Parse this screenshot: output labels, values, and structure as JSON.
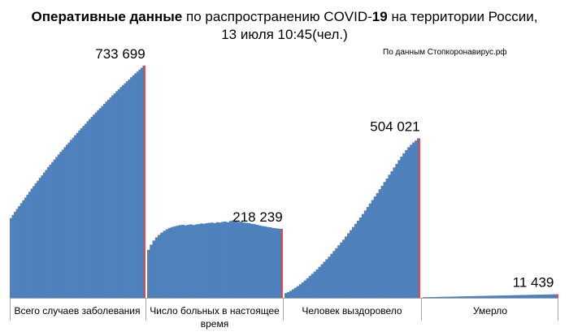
{
  "header": {
    "title_bold_1": "Оперативные данные",
    "title_text_1": " по распространению COVID-",
    "title_bold_2": "19",
    "title_text_2": " на территории России,",
    "title_line2": "13 июля 10:45(чел.)",
    "source": "По данным Стопкоронавирус.рф"
  },
  "chart_data": {
    "type": "area",
    "title": "Оперативные данные по распространению COVID-19 на территории России, 13 июля 10:45(чел.)",
    "ylim": [
      0,
      800000
    ],
    "grid": false,
    "legend": "none",
    "colors": {
      "fill": "#4f81bd",
      "marker": "#e0443e",
      "axis": "#a6a6a6"
    },
    "panels": [
      {
        "name": "Всего случаев заболевания",
        "label_lines": [
          "Всего случаев заболевания"
        ],
        "final_label": "733 699",
        "values": [
          252000,
          262000,
          272000,
          281000,
          290000,
          299000,
          308000,
          317000,
          326000,
          335000,
          345000,
          353000,
          362000,
          370000,
          379000,
          387000,
          396000,
          404000,
          413000,
          421000,
          429000,
          437000,
          445000,
          453000,
          461000,
          468000,
          476000,
          484000,
          491000,
          499000,
          506000,
          514000,
          521000,
          529000,
          536000,
          543000,
          550000,
          558000,
          565000,
          572000,
          579000,
          586000,
          593000,
          599000,
          606000,
          613000,
          620000,
          626000,
          633000,
          640000,
          646000,
          653000,
          659000,
          666000,
          672000,
          678000,
          684000,
          690000,
          697000,
          703000,
          709000,
          715000,
          721000,
          727000,
          733699
        ]
      },
      {
        "name": "Число больных в настоящее время",
        "label_lines": [
          "Число больных в настоящее",
          "время"
        ],
        "final_label": "218 239",
        "values": [
          152000,
          168000,
          181000,
          191000,
          199000,
          206000,
          212000,
          217000,
          221000,
          224000,
          226000,
          228000,
          230000,
          231000,
          229000,
          231000,
          232000,
          230000,
          232000,
          233000,
          235000,
          234000,
          236000,
          237000,
          238000,
          236000,
          239000,
          238000,
          240000,
          241000,
          239000,
          243000,
          245000,
          242000,
          240000,
          241000,
          238000,
          237000,
          236000,
          234000,
          233000,
          231000,
          229000,
          227000,
          226000,
          224000,
          223000,
          221000,
          220000,
          219000,
          218239
        ]
      },
      {
        "name": "Человек выздоровело",
        "label_lines": [
          "Человек выздоровело"
        ],
        "final_label": "504 021",
        "values": [
          15000,
          18000,
          22000,
          27000,
          32000,
          37000,
          43000,
          49000,
          55000,
          62000,
          69000,
          76000,
          83000,
          90000,
          98000,
          106000,
          114000,
          122000,
          130000,
          139000,
          148000,
          157000,
          166000,
          175000,
          184000,
          194000,
          204000,
          214000,
          224000,
          234000,
          244000,
          254000,
          265000,
          276000,
          287000,
          298000,
          309000,
          320000,
          331000,
          343000,
          354000,
          366000,
          377000,
          389000,
          400000,
          412000,
          423000,
          435000,
          446000,
          457000,
          467000,
          476000,
          484000,
          491000,
          497000,
          504021
        ]
      },
      {
        "name": "Умерло",
        "label_lines": [
          "Умерло"
        ],
        "final_label": "11 439",
        "values": [
          2000,
          2300,
          2600,
          2900,
          3200,
          3500,
          3800,
          4100,
          4400,
          4700,
          5000,
          5300,
          5600,
          5900,
          6200,
          6500,
          6800,
          7100,
          7400,
          7700,
          8000,
          8300,
          8600,
          8900,
          9200,
          9500,
          9800,
          10100,
          10400,
          10700,
          11000,
          11439
        ]
      }
    ]
  }
}
